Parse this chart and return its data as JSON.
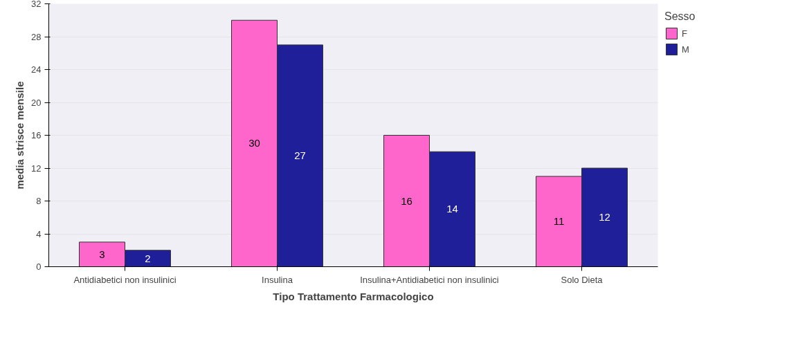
{
  "chart_data": {
    "type": "bar",
    "xlabel": "Tipo Trattamento Farmacologico",
    "ylabel": "media strisce mensile",
    "legend_title": "Sesso",
    "categories": [
      "Antidiabetici non insulinici",
      "Insulina",
      "Insulina+Antidiabetici non insulinici",
      "Solo Dieta"
    ],
    "series": [
      {
        "name": "F",
        "color": "#ff66cc",
        "values": [
          3,
          30,
          16,
          11
        ]
      },
      {
        "name": "M",
        "color": "#1f1f99",
        "values": [
          2,
          27,
          14,
          12
        ]
      }
    ],
    "ylim": [
      0,
      32
    ],
    "yticks": [
      0,
      4,
      8,
      12,
      16,
      20,
      24,
      28,
      32
    ],
    "grid": "y",
    "legend": "right",
    "data_labels": true
  }
}
